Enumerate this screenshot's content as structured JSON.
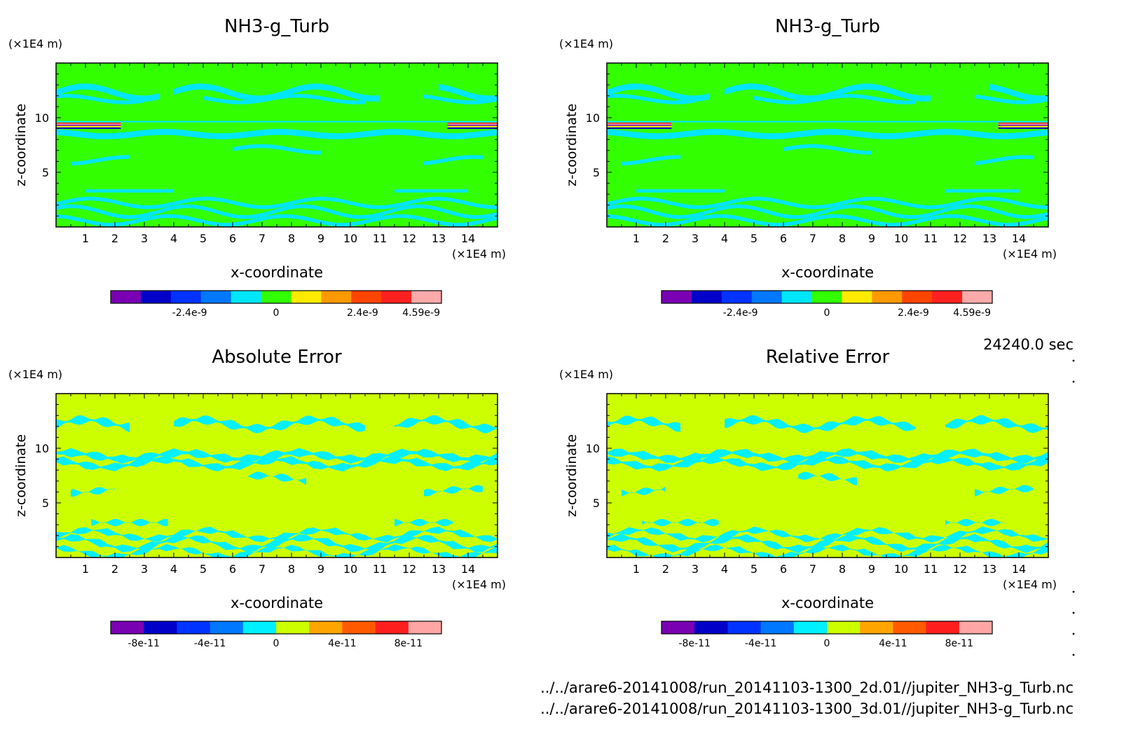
{
  "time_label": "24240.0 sec",
  "file_paths": [
    "../../arare6-20141008/run_20141103-1300_2d.01//jupiter_NH3-g_Turb.nc",
    "../../arare6-20141008/run_20141103-1300_3d.01//jupiter_NH3-g_Turb.nc"
  ],
  "colors": {
    "field_scale": [
      "#7a00b4",
      "#0000c8",
      "#0033ff",
      "#0078ff",
      "#00e6ff",
      "#32ff00",
      "#ffeb00",
      "#ff9900",
      "#ff4400",
      "#ff2020",
      "#ffaaaa"
    ],
    "error_scale": [
      "#7a00b4",
      "#0000c8",
      "#0033ff",
      "#0078ff",
      "#00f0ff",
      "#ccff00",
      "#ffa500",
      "#ff5a00",
      "#ff1e1e",
      "#ffa5a5"
    ]
  },
  "chart_data": [
    {
      "type": "heatmap",
      "title": "NH3-g_Turb",
      "xlabel": "x-coordinate",
      "ylabel": "z-coordinate",
      "x_unit": "(×1E4 m)",
      "z_unit": "(×1E4 m)",
      "xlim": [
        0,
        15
      ],
      "zlim": [
        0,
        15
      ],
      "xticks": [
        1,
        2,
        3,
        4,
        5,
        6,
        7,
        8,
        9,
        10,
        11,
        12,
        13,
        14
      ],
      "zticks": [
        5,
        10
      ],
      "dominant_level": "0",
      "colorbar_labels": [
        "-2.4e-9",
        "0",
        "2.4e-9",
        "4.59e-9"
      ],
      "colorbar_range": [
        -4.59e-09,
        4.59e-09
      ],
      "colorbar_levels": 11
    },
    {
      "type": "heatmap",
      "title": "NH3-g_Turb",
      "xlabel": "x-coordinate",
      "ylabel": "z-coordinate",
      "x_unit": "(×1E4 m)",
      "z_unit": "(×1E4 m)",
      "xlim": [
        0,
        15
      ],
      "zlim": [
        0,
        15
      ],
      "xticks": [
        1,
        2,
        3,
        4,
        5,
        6,
        7,
        8,
        9,
        10,
        11,
        12,
        13,
        14
      ],
      "zticks": [
        5,
        10
      ],
      "dominant_level": "0",
      "colorbar_labels": [
        "-2.4e-9",
        "0",
        "2.4e-9",
        "4.59e-9"
      ],
      "colorbar_range": [
        -4.59e-09,
        4.59e-09
      ],
      "colorbar_levels": 11
    },
    {
      "type": "heatmap",
      "title": "Absolute Error",
      "xlabel": "x-coordinate",
      "ylabel": "z-coordinate",
      "x_unit": "(×1E4 m)",
      "z_unit": "(×1E4 m)",
      "xlim": [
        0,
        15
      ],
      "zlim": [
        0,
        15
      ],
      "xticks": [
        1,
        2,
        3,
        4,
        5,
        6,
        7,
        8,
        9,
        10,
        11,
        12,
        13,
        14
      ],
      "zticks": [
        5,
        10
      ],
      "dominant_level": "0",
      "colorbar_labels": [
        "-8e-11",
        "-4e-11",
        "0",
        "4e-11",
        "8e-11"
      ],
      "colorbar_range": [
        -1e-10,
        1e-10
      ],
      "colorbar_levels": 10
    },
    {
      "type": "heatmap",
      "title": "Relative Error",
      "xlabel": "x-coordinate",
      "ylabel": "z-coordinate",
      "x_unit": "(×1E4 m)",
      "z_unit": "(×1E4 m)",
      "xlim": [
        0,
        15
      ],
      "zlim": [
        0,
        15
      ],
      "xticks": [
        1,
        2,
        3,
        4,
        5,
        6,
        7,
        8,
        9,
        10,
        11,
        12,
        13,
        14
      ],
      "zticks": [
        5,
        10
      ],
      "dominant_level": "0",
      "colorbar_labels": [
        "-8e-11",
        "-4e-11",
        "0",
        "4e-11",
        "8e-11"
      ],
      "colorbar_range": [
        -1e-10,
        1e-10
      ],
      "colorbar_levels": 10
    }
  ]
}
